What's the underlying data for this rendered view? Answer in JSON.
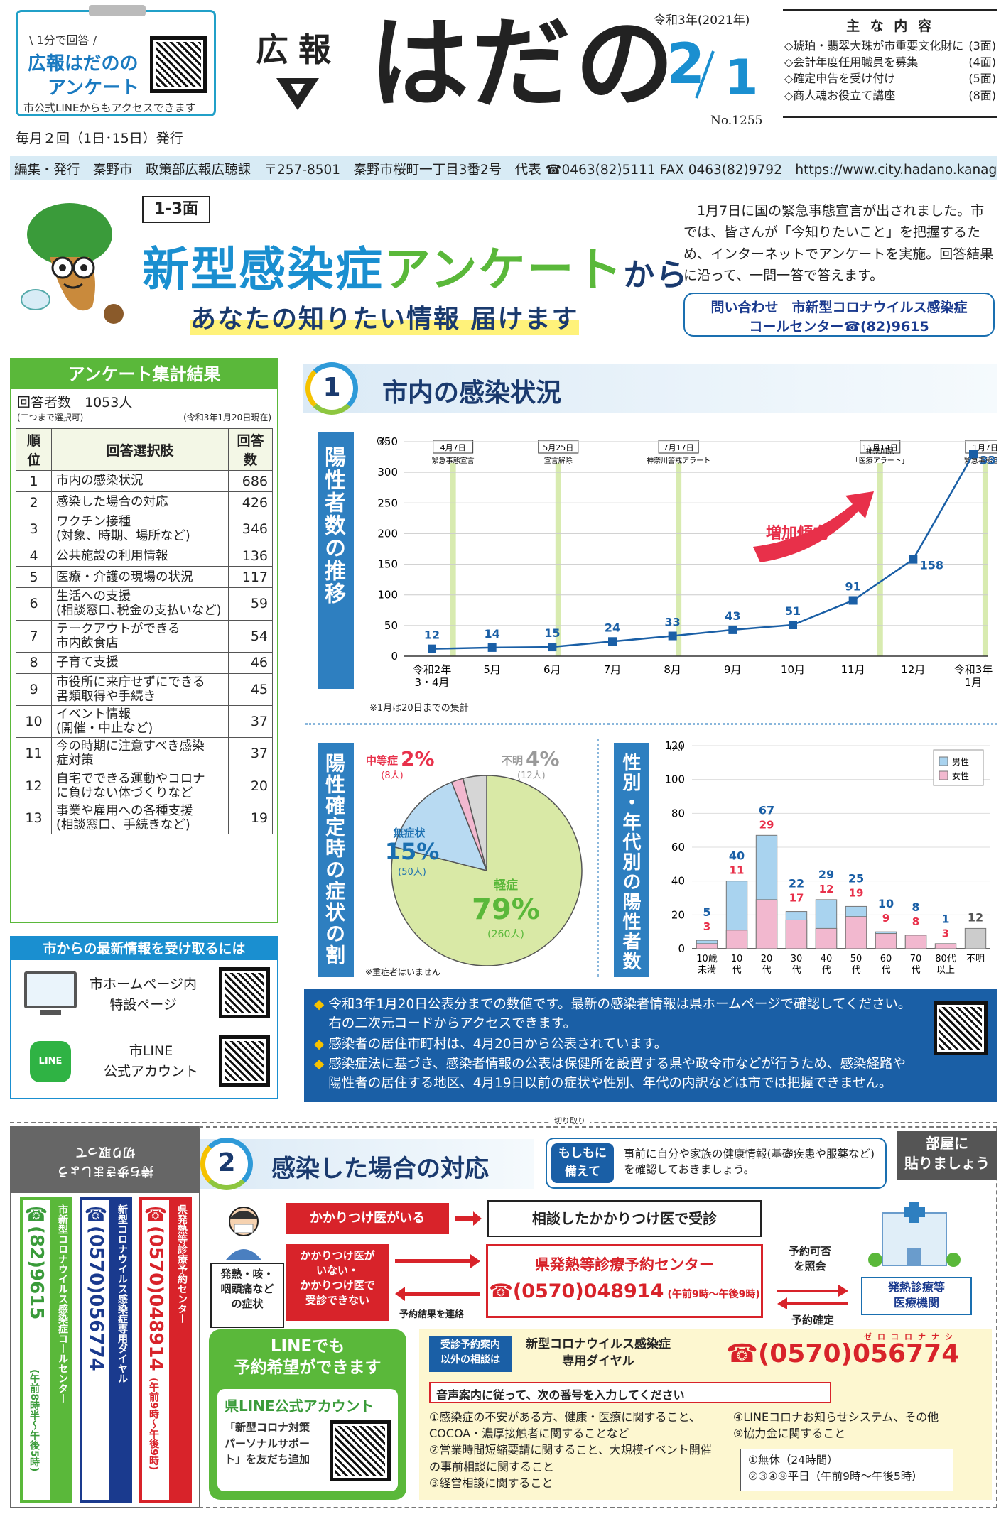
{
  "header": {
    "survey_box": {
      "tag": "\\ 1分で回答 /",
      "title1": "広報はだのの",
      "title2": "アンケート",
      "note": "市公式LINEからもアクセスできます"
    },
    "publish_freq": "毎月２回（1日･15日）発行",
    "logo_small": "広報",
    "logo_big": "はだの",
    "era": "令和3年(2021年)",
    "date_month": "2",
    "date_day": "1",
    "issue_no": "No.1255",
    "contents_title": "主 な 内 容",
    "contents": [
      {
        "text": "◇琥珀・翡翠大珠が市重要文化財に",
        "page": "(3面)"
      },
      {
        "text": "◇会計年度任用職員を募集",
        "page": "(4面)"
      },
      {
        "text": "◇確定申告を受け付け",
        "page": "(5面)"
      },
      {
        "text": "◇商人魂お役立て講座",
        "page": "(8面)"
      }
    ],
    "info_bar": "編集・発行　秦野市　政策部広報広聴課　〒257-8501　秦野市桜町一丁目3番2号　代表 ☎0463(82)5111 FAX 0463(82)9792　https://www.city.hadano.kanagawa.jp"
  },
  "hero": {
    "pages": "1-3面",
    "title_blue": "新型感染症",
    "title_green": "アンケート",
    "title_suffix": "から",
    "subtitle": "あなたの知りたい情報 届けます",
    "intro": "　1月7日に国の緊急事態宣言が出されました。市では、皆さんが「今知りたいこと」を把握するため、インターネットでアンケートを実施。回答結果に沿って、一問一答で答えます。",
    "contact_line1": "問い合わせ　市新型コロナウイルス感染症",
    "contact_line2": "コールセンター☎(82)9615"
  },
  "survey": {
    "title": "アンケート集計結果",
    "respondents": "回答者数　1053人",
    "note_left": "(二つまで選択可)",
    "note_right": "(令和3年1月20日現在)",
    "headers": [
      "順位",
      "回答選択肢",
      "回答数"
    ],
    "rows": [
      [
        "1",
        "市内の感染状況",
        "686"
      ],
      [
        "2",
        "感染した場合の対応",
        "426"
      ],
      [
        "3",
        "ワクチン接種\n(対象、時期、場所など)",
        "346"
      ],
      [
        "4",
        "公共施設の利用情報",
        "136"
      ],
      [
        "5",
        "医療・介護の現場の状況",
        "117"
      ],
      [
        "6",
        "生活への支援\n(相談窓口､税金の支払いなど)",
        "59"
      ],
      [
        "7",
        "テークアウトができる\n市内飲食店",
        "54"
      ],
      [
        "8",
        "子育て支援",
        "46"
      ],
      [
        "9",
        "市役所に来庁せずにできる\n書類取得や手続き",
        "45"
      ],
      [
        "10",
        "イベント情報\n(開催・中止など)",
        "37"
      ],
      [
        "11",
        "今の時期に注意すべき感染\n症対策",
        "37"
      ],
      [
        "12",
        "自宅でできる運動やコロナ\nに負けない体づくりなど",
        "20"
      ],
      [
        "13",
        "事業や雇用への各種支援\n(相談窓口、手続きなど)",
        "19"
      ]
    ],
    "latest_title": "市からの最新情報を受け取るには",
    "latest_items": [
      "市ホームページ内\n特設ページ",
      "市LINE\n公式アカウント"
    ],
    "line_icon": "LINE"
  },
  "section1": {
    "num": "1",
    "title": "市内の感染状況",
    "side_label": "陽性者数の推移",
    "footnote": "※1月は20日までの集計",
    "trend_label": "増加傾向",
    "events": [
      {
        "date": "4月7日",
        "label": "緊急事態宣言"
      },
      {
        "date": "5月25日",
        "label": "宣言解除"
      },
      {
        "date": "7月17日",
        "label": "神奈川警戒アラート"
      },
      {
        "date": "11月14日",
        "label": "神奈川県\n「医療アラート」"
      },
      {
        "date": "1月7日",
        "label": "緊急事態宣言"
      }
    ]
  },
  "chart_data": [
    {
      "type": "line",
      "title": "陽性者数の推移",
      "ylabel": "(人)",
      "ylim": [
        0,
        350
      ],
      "yticks": [
        0,
        50,
        100,
        150,
        200,
        250,
        300,
        350
      ],
      "categories": [
        "令和2年\n3・4月",
        "5月",
        "6月",
        "7月",
        "8月",
        "9月",
        "10月",
        "11月",
        "12月",
        "令和3年\n1月"
      ],
      "values": [
        12,
        14,
        15,
        24,
        33,
        43,
        51,
        91,
        158,
        330
      ]
    },
    {
      "type": "pie",
      "title": "陽性確定時の症状の割合",
      "slices": [
        {
          "name": "軽症",
          "percent": 79,
          "count": "(260人)",
          "color": "#d9e9a6"
        },
        {
          "name": "無症状",
          "percent": 15,
          "count": "(50人)",
          "color": "#b8daf2"
        },
        {
          "name": "中等症",
          "percent": 2,
          "count": "(8人)",
          "color": "#f2b8cf"
        },
        {
          "name": "不明",
          "percent": 4,
          "count": "(12人)",
          "color": "#d6d6d6"
        }
      ],
      "note": "※重症者はいません"
    },
    {
      "type": "bar",
      "title": "性別・年代別の陽性者数",
      "ylabel": "(人)",
      "ylim": [
        0,
        120
      ],
      "yticks": [
        0,
        20,
        40,
        60,
        80,
        100,
        120
      ],
      "categories": [
        "10歳\n未満",
        "10\n代",
        "20\n代",
        "30\n代",
        "40\n代",
        "50\n代",
        "60\n代",
        "70\n代",
        "80代\n以上",
        "不明"
      ],
      "series": [
        {
          "name": "男性",
          "values": [
            5,
            40,
            67,
            22,
            29,
            25,
            10,
            8,
            1,
            null
          ],
          "color": "#a9d3ef"
        },
        {
          "name": "女性",
          "values": [
            3,
            11,
            29,
            17,
            12,
            19,
            9,
            8,
            3,
            null
          ],
          "color": "#f2b8cf"
        }
      ],
      "unknown": 12
    }
  ],
  "section1_notes": {
    "items": [
      "令和3年1月20日公表分までの数値です。最新の感染者情報は県ホームページで確認してください。右の二次元コードからアクセスできます。",
      "感染者の居住市町村は、4月20日から公表されています。",
      "感染症法に基づき、感染者情報の公表は保健所を設置する県や政令市などが行うため、感染経路や陽性者の居住する地区、4月19日以前の症状や性別、年代の内訳などは市では把握できません。"
    ]
  },
  "cutout": {
    "header": "持ち歩きましょう\n切り取って",
    "cut_mark": "切り取り",
    "col1_title": "市新型コロナウイルス感染症コールセンター",
    "col1_phone": "☎(82)9615",
    "col1_hours": "(午前8時半～午後5時)",
    "col2_title": "新型コロナウイルス感染症専用ダイヤル",
    "col2_phone": "☎(0570)056774",
    "col3_title": "県発熱等診療予約センター",
    "col3_phone": "☎(0570)048914",
    "col3_hours": "(午前9時～午後9時)"
  },
  "section2": {
    "num": "2",
    "title": "感染した場合の対応",
    "prepare_label": "もしもに\n備えて",
    "prepare_text": "事前に自分や家族の健康情報(基礎疾患や服薬など)を確認しておきましょう。",
    "post_label": "部屋に\n貼りましょう",
    "symptoms": "発熱・咳・\n咽頭痛など\nの症状",
    "has_doctor": "かかりつけ医がいる",
    "consult_doctor": "相談したかかりつけ医で受診",
    "no_doctor": "かかりつけ医が\nいない・\nかかりつけ医で\n受診できない",
    "center_name": "県発熱等診療予約センター",
    "center_phone": "☎(0570)048914",
    "center_hours": "(午前9時～午後9時)",
    "result_contact": "予約結果を連絡",
    "check_avail": "予約可否\nを照会",
    "confirm": "予約確定",
    "clinic": "発熱診療等\n医療機関",
    "line_title": "LINEでも\n予約希望ができます",
    "line_account": "県LINE公式アカウント",
    "line_text": "「新型コロナ対策\nパーソナルサポー\nト」を友だち追加",
    "dial_label": "受診予約案内\n以外の相談は",
    "dial_name": "新型コロナウイルス感染症\n専用ダイヤル",
    "dial_phone": "☎(0570)056774",
    "dial_ruby": "ゼロコロナナシ",
    "voice_guide": "音声案内に従って、次の番号を入力してください",
    "options_left": [
      "①感染症の不安がある方、健康・医療に関すること、COCOA・濃厚接触者に関することなど",
      "②営業時間短縮要請に関すること、大規模イベント開催の事前相談に関すること",
      "③経営相談に関すること"
    ],
    "options_right": [
      "④LINEコロナお知らせシステム、その他",
      "⑨協力金に関すること"
    ],
    "hours_1": "①無休（24時間）",
    "hours_2": "②③④⑨平日（午前9時～午後5時）"
  }
}
